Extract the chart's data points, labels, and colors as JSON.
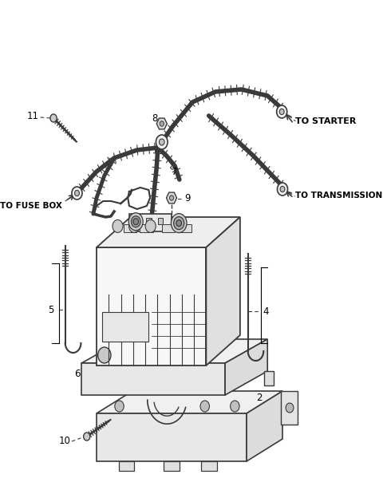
{
  "bg_color": "#ffffff",
  "lc": "#3a3a3a",
  "fig_w": 4.8,
  "fig_h": 6.19,
  "dpi": 100,
  "xlim": [
    0,
    480
  ],
  "ylim": [
    0,
    619
  ]
}
